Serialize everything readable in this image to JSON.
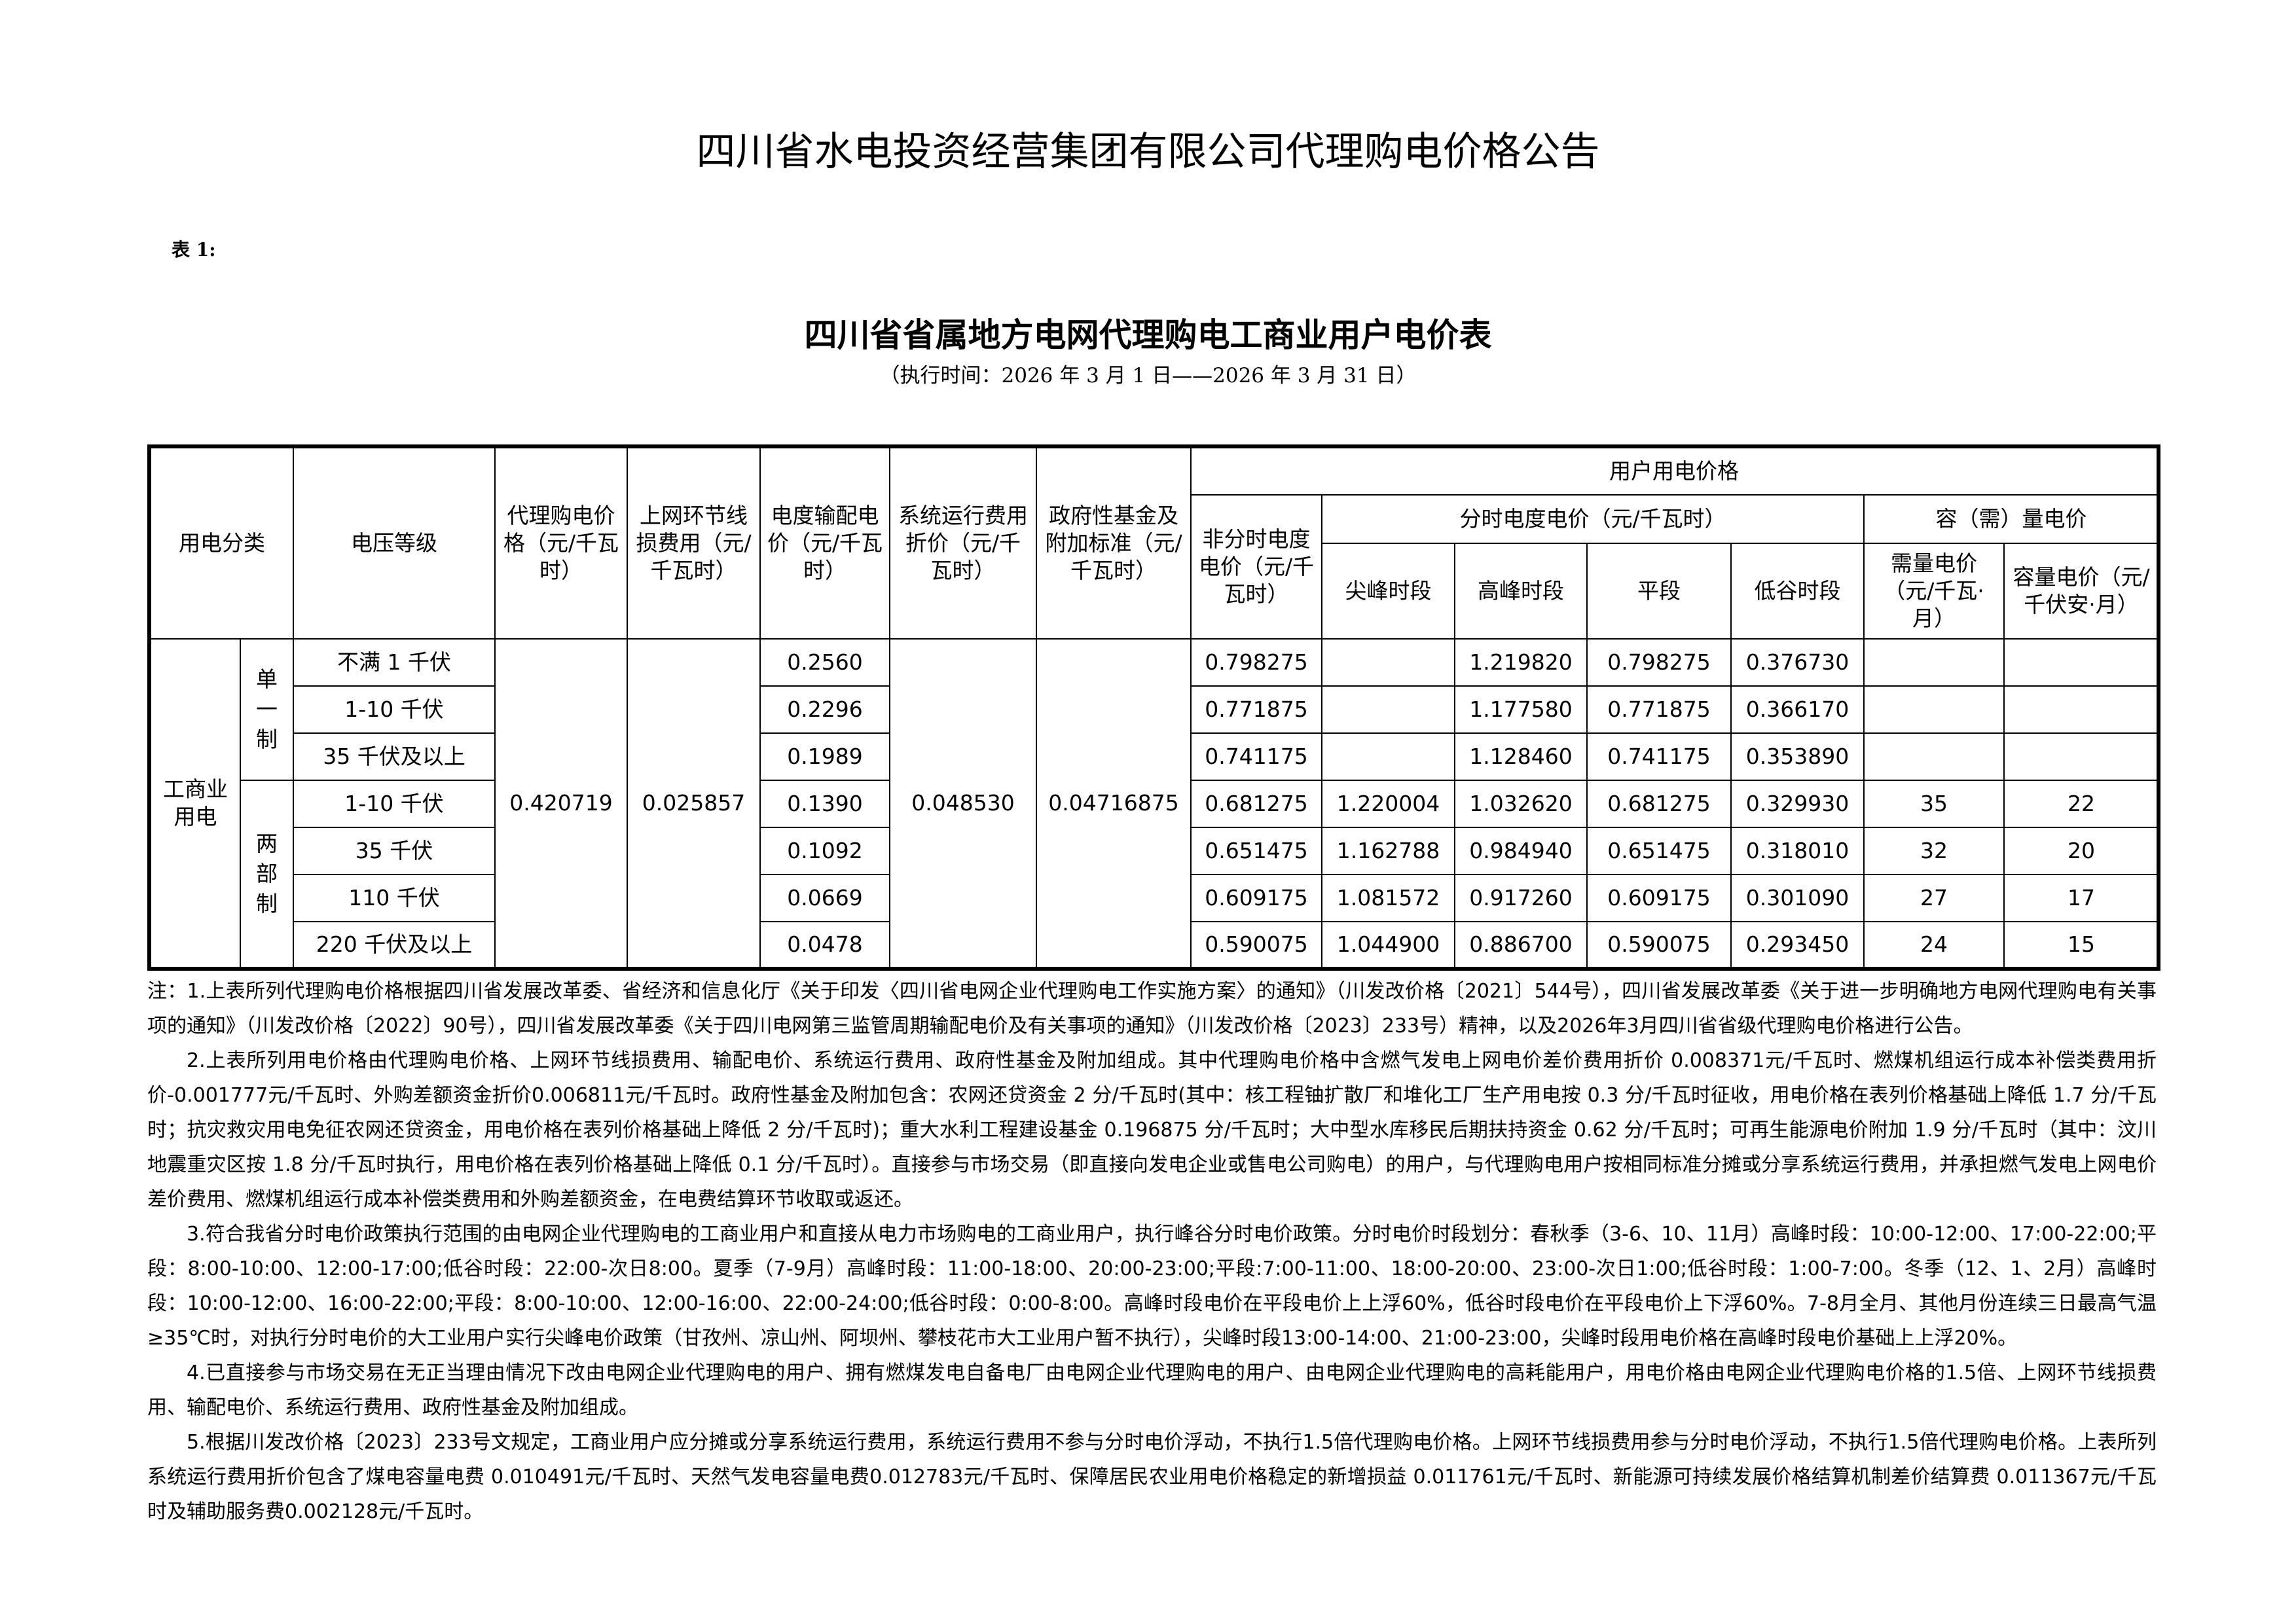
{
  "title": "四川省水电投资经营集团有限公司代理购电价格公告",
  "table_no": "表 1:",
  "subtitle": "四川省省属地方电网代理购电工商业用户电价表",
  "exec_time": "（执行时间：2026 年 3 月 1 日——2026 年 3 月 31 日）",
  "headers": {
    "category": "用电分类",
    "voltage": "电压等级",
    "agency_price": "代理购电价格（元/千瓦时）",
    "line_loss": "上网环节线损费用（元/千瓦时）",
    "transmission": "电度输配电价（元/千瓦时）",
    "system_op": "系统运行费用折价（元/千瓦时）",
    "gov_fund": "政府性基金及附加标准（元/千瓦时）",
    "user_price": "用户用电价格",
    "non_tou": "非分时电度电价（元/千瓦时）",
    "tou": "分时电度电价（元/千瓦时）",
    "capacity_group": "容（需）量电价",
    "sharp": "尖峰时段",
    "peak": "高峰时段",
    "flat": "平段",
    "valley": "低谷时段",
    "demand": "需量电价（元/千瓦·月）",
    "capacity": "容量电价（元/千伏安·月）"
  },
  "groups": {
    "main": "工商业用电",
    "single": "单一制",
    "two_part": "两部制"
  },
  "shared": {
    "agency_price": "0.420719",
    "line_loss": "0.025857",
    "system_op": "0.048530",
    "gov_fund": "0.04716875"
  },
  "rows": [
    {
      "voltage": "不满 1 千伏",
      "transmission": "0.2560",
      "non_tou": "0.798275",
      "sharp": "",
      "peak": "1.219820",
      "flat": "0.798275",
      "valley": "0.376730",
      "demand": "",
      "capacity": ""
    },
    {
      "voltage": "1-10 千伏",
      "transmission": "0.2296",
      "non_tou": "0.771875",
      "sharp": "",
      "peak": "1.177580",
      "flat": "0.771875",
      "valley": "0.366170",
      "demand": "",
      "capacity": ""
    },
    {
      "voltage": "35 千伏及以上",
      "transmission": "0.1989",
      "non_tou": "0.741175",
      "sharp": "",
      "peak": "1.128460",
      "flat": "0.741175",
      "valley": "0.353890",
      "demand": "",
      "capacity": ""
    },
    {
      "voltage": "1-10 千伏",
      "transmission": "0.1390",
      "non_tou": "0.681275",
      "sharp": "1.220004",
      "peak": "1.032620",
      "flat": "0.681275",
      "valley": "0.329930",
      "demand": "35",
      "capacity": "22"
    },
    {
      "voltage": "35 千伏",
      "transmission": "0.1092",
      "non_tou": "0.651475",
      "sharp": "1.162788",
      "peak": "0.984940",
      "flat": "0.651475",
      "valley": "0.318010",
      "demand": "32",
      "capacity": "20"
    },
    {
      "voltage": "110 千伏",
      "transmission": "0.0669",
      "non_tou": "0.609175",
      "sharp": "1.081572",
      "peak": "0.917260",
      "flat": "0.609175",
      "valley": "0.301090",
      "demand": "27",
      "capacity": "17"
    },
    {
      "voltage": "220 千伏及以上",
      "transmission": "0.0478",
      "non_tou": "0.590075",
      "sharp": "1.044900",
      "peak": "0.886700",
      "flat": "0.590075",
      "valley": "0.293450",
      "demand": "24",
      "capacity": "15"
    }
  ],
  "notes": [
    "注：1.上表所列代理购电价格根据四川省发展改革委、省经济和信息化厅《关于印发〈四川省电网企业代理购电工作实施方案〉的通知》（川发改价格〔2021〕544号），四川省发展改革委《关于进一步明确地方电网代理购电有关事项的通知》（川发改价格〔2022〕90号），四川省发展改革委《关于四川电网第三监管周期输配电价及有关事项的通知》（川发改价格〔2023〕233号）精神，以及2026年3月四川省省级代理购电价格进行公告。",
    "2.上表所列用电价格由代理购电价格、上网环节线损费用、输配电价、系统运行费用、政府性基金及附加组成。其中代理购电价格中含燃气发电上网电价差价费用折价 0.008371元/千瓦时、燃煤机组运行成本补偿类费用折价-0.001777元/千瓦时、外购差额资金折价0.006811元/千瓦时。政府性基金及附加包含：农网还贷资金 2 分/千瓦时(其中：核工程铀扩散厂和堆化工厂生产用电按 0.3 分/千瓦时征收，用电价格在表列价格基础上降低 1.7 分/千瓦时；抗灾救灾用电免征农网还贷资金，用电价格在表列价格基础上降低 2 分/千瓦时)；重大水利工程建设基金 0.196875 分/千瓦时；大中型水库移民后期扶持资金 0.62 分/千瓦时；可再生能源电价附加 1.9 分/千瓦时（其中：汶川地震重灾区按 1.8 分/千瓦时执行，用电价格在表列价格基础上降低 0.1 分/千瓦时）。直接参与市场交易（即直接向发电企业或售电公司购电）的用户，与代理购电用户按相同标准分摊或分享系统运行费用，并承担燃气发电上网电价差价费用、燃煤机组运行成本补偿类费用和外购差额资金，在电费结算环节收取或返还。",
    "3.符合我省分时电价政策执行范围的由电网企业代理购电的工商业用户和直接从电力市场购电的工商业用户，执行峰谷分时电价政策。分时电价时段划分：春秋季（3-6、10、11月）高峰时段：10:00-12:00、17:00-22:00;平段：8:00-10:00、12:00-17:00;低谷时段：22:00-次日8:00。夏季（7-9月）高峰时段：11:00-18:00、20:00-23:00;平段:7:00-11:00、18:00-20:00、23:00-次日1:00;低谷时段：1:00-7:00。冬季（12、1、2月）高峰时段：10:00-12:00、16:00-22:00;平段：8:00-10:00、12:00-16:00、22:00-24:00;低谷时段：0:00-8:00。高峰时段电价在平段电价上上浮60%，低谷时段电价在平段电价上下浮60%。7-8月全月、其他月份连续三日最高气温≥35℃时，对执行分时电价的大工业用户实行尖峰电价政策（甘孜州、凉山州、阿坝州、攀枝花市大工业用户暂不执行），尖峰时段13:00-14:00、21:00-23:00，尖峰时段用电价格在高峰时段电价基础上上浮20%。",
    "4.已直接参与市场交易在无正当理由情况下改由电网企业代理购电的用户、拥有燃煤发电自备电厂由电网企业代理购电的用户、由电网企业代理购电的高耗能用户，用电价格由电网企业代理购电价格的1.5倍、上网环节线损费用、输配电价、系统运行费用、政府性基金及附加组成。",
    "5.根据川发改价格〔2023〕233号文规定，工商业用户应分摊或分享系统运行费用，系统运行费用不参与分时电价浮动，不执行1.5倍代理购电价格。上网环节线损费用参与分时电价浮动，不执行1.5倍代理购电价格。上表所列系统运行费用折价包含了煤电容量电费 0.010491元/千瓦时、天然气发电容量电费0.012783元/千瓦时、保障居民农业用电价格稳定的新增损益 0.011761元/千瓦时、新能源可持续发展价格结算机制差价结算费 0.011367元/千瓦时及辅助服务费0.002128元/千瓦时。"
  ]
}
